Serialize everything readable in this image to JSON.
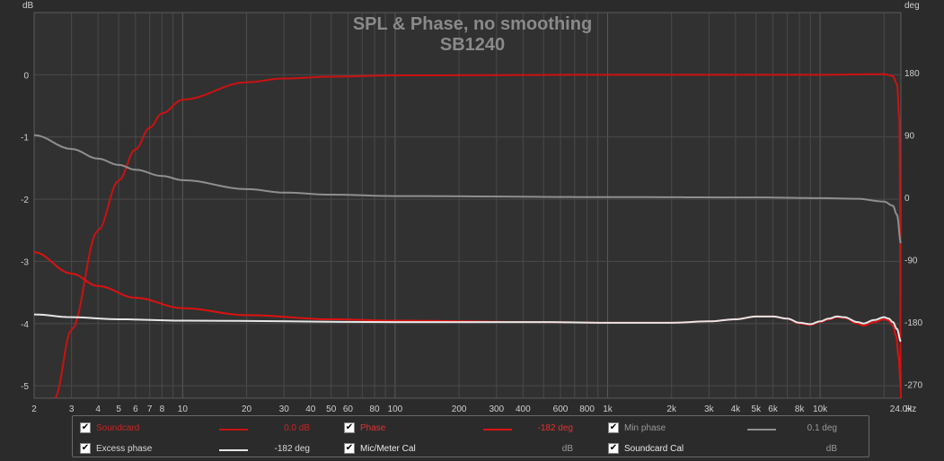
{
  "chart_data": {
    "type": "line",
    "title": "SPL & Phase, no smoothing",
    "subtitle": "SB1240",
    "left_axis": {
      "unit": "dB",
      "range": [
        -5.2,
        1.0
      ],
      "ticks": [
        "0",
        "-1",
        "-2",
        "-3",
        "-4",
        "-5"
      ],
      "tick_values": [
        0,
        -1,
        -2,
        -3,
        -4,
        -5
      ]
    },
    "right_axis": {
      "unit": "deg",
      "range": [
        -290,
        267
      ],
      "ticks": [
        "180",
        "90",
        "0",
        "-90",
        "-180",
        "-270"
      ],
      "tick_values": [
        180,
        90,
        0,
        -90,
        -180,
        -270
      ]
    },
    "x_axis": {
      "scale": "log",
      "unit": "Hz",
      "range": [
        2,
        24000
      ],
      "ticks": [
        "2",
        "3",
        "4",
        "5",
        "6",
        "7",
        "8",
        "10",
        "20",
        "30",
        "40",
        "50",
        "60",
        "80",
        "100",
        "200",
        "300",
        "400",
        "600",
        "800",
        "1k",
        "2k",
        "3k",
        "4k",
        "5k",
        "6k",
        "8k",
        "10k",
        "24.0k"
      ],
      "tick_values": [
        2,
        3,
        4,
        5,
        6,
        7,
        8,
        10,
        20,
        30,
        40,
        50,
        60,
        80,
        100,
        200,
        300,
        400,
        600,
        800,
        1000,
        2000,
        3000,
        4000,
        5000,
        6000,
        8000,
        10000,
        24000
      ]
    },
    "grid": true,
    "series": [
      {
        "name": "Soundcard",
        "axis": "left",
        "color": "#cc1111",
        "points": [
          [
            2.5,
            -5.2
          ],
          [
            3,
            -4.1
          ],
          [
            4,
            -2.5
          ],
          [
            5,
            -1.7
          ],
          [
            6,
            -1.2
          ],
          [
            7,
            -0.85
          ],
          [
            8,
            -0.62
          ],
          [
            10,
            -0.4
          ],
          [
            20,
            -0.12
          ],
          [
            30,
            -0.06
          ],
          [
            50,
            -0.03
          ],
          [
            100,
            -0.01
          ],
          [
            1000,
            0
          ],
          [
            10000,
            0
          ],
          [
            20000,
            0.01
          ],
          [
            22000,
            -0.02
          ],
          [
            23000,
            -0.15
          ],
          [
            23600,
            -0.7
          ],
          [
            24000,
            -5.2
          ]
        ]
      },
      {
        "name": "Phase",
        "axis": "right",
        "color": "#dd1111",
        "points": [
          [
            2,
            -79
          ],
          [
            3,
            -110
          ],
          [
            4,
            -128
          ],
          [
            6,
            -145
          ],
          [
            10,
            -160
          ],
          [
            20,
            -170
          ],
          [
            50,
            -176
          ],
          [
            100,
            -178
          ],
          [
            500,
            -180
          ],
          [
            1000,
            -181
          ],
          [
            2000,
            -181
          ],
          [
            3000,
            -179
          ],
          [
            4000,
            -176
          ],
          [
            5000,
            -172
          ],
          [
            6000,
            -172
          ],
          [
            7000,
            -175
          ],
          [
            8000,
            -182
          ],
          [
            9000,
            -184
          ],
          [
            10000,
            -180
          ],
          [
            11000,
            -176
          ],
          [
            12000,
            -173
          ],
          [
            13000,
            -174
          ],
          [
            15000,
            -182
          ],
          [
            16000,
            -185
          ],
          [
            18000,
            -180
          ],
          [
            20000,
            -176
          ],
          [
            21000,
            -178
          ],
          [
            22000,
            -185
          ],
          [
            22800,
            -200
          ],
          [
            23400,
            -230
          ],
          [
            24000,
            -275
          ]
        ]
      },
      {
        "name": "Min phase",
        "axis": "right",
        "color": "#8f8f8f",
        "points": [
          [
            2,
            90
          ],
          [
            3,
            70
          ],
          [
            4,
            56
          ],
          [
            5,
            47
          ],
          [
            6,
            40
          ],
          [
            8,
            31
          ],
          [
            10,
            25
          ],
          [
            20,
            12
          ],
          [
            30,
            7
          ],
          [
            50,
            4
          ],
          [
            100,
            2
          ],
          [
            1000,
            0.5
          ],
          [
            5000,
            0
          ],
          [
            10000,
            -1
          ],
          [
            15000,
            -2
          ],
          [
            20000,
            -6
          ],
          [
            22000,
            -12
          ],
          [
            23000,
            -25
          ],
          [
            24000,
            -66
          ]
        ]
      },
      {
        "name": "Excess phase",
        "axis": "right",
        "color": "#e6e6e6",
        "points": [
          [
            2,
            -169
          ],
          [
            3,
            -173
          ],
          [
            5,
            -176
          ],
          [
            10,
            -178
          ],
          [
            100,
            -180
          ],
          [
            500,
            -180
          ],
          [
            1000,
            -181
          ],
          [
            2000,
            -181
          ],
          [
            3000,
            -179
          ],
          [
            4000,
            -176
          ],
          [
            5000,
            -172
          ],
          [
            6000,
            -172
          ],
          [
            7000,
            -175
          ],
          [
            8000,
            -181
          ],
          [
            9000,
            -183
          ],
          [
            10000,
            -179
          ],
          [
            11000,
            -175
          ],
          [
            12000,
            -172
          ],
          [
            13000,
            -173
          ],
          [
            15000,
            -180
          ],
          [
            16000,
            -182
          ],
          [
            18000,
            -177
          ],
          [
            20000,
            -173
          ],
          [
            21000,
            -175
          ],
          [
            22000,
            -180
          ],
          [
            23000,
            -190
          ],
          [
            24000,
            -208
          ]
        ]
      }
    ]
  },
  "legend": [
    {
      "label": "Soundcard",
      "value": "0.0 dB",
      "color": "#cc1111",
      "label_color": "#cc2222",
      "value_color": "#cc2222",
      "swatch": true
    },
    {
      "label": "Phase",
      "value": "-182 deg",
      "color": "#dd1111",
      "label_color": "#e63030",
      "value_color": "#e63030",
      "swatch": true
    },
    {
      "label": "Min phase",
      "value": "0.1 deg",
      "color": "#8f8f8f",
      "label_color": "#9a9a9a",
      "value_color": "#9a9a9a",
      "swatch": true
    },
    {
      "label": "Excess phase",
      "value": "-182 deg",
      "color": "#e6e6e6",
      "label_color": "#d8d8d8",
      "value_color": "#d8d8d8",
      "swatch": true
    },
    {
      "label": "Mic/Meter Cal",
      "value": "dB",
      "color": "",
      "label_color": "#e8e8e8",
      "value_color": "#9a9a9a",
      "swatch": false
    },
    {
      "label": "Soundcard Cal",
      "value": "dB",
      "color": "",
      "label_color": "#e8e8e8",
      "value_color": "#9a9a9a",
      "swatch": false
    }
  ],
  "colors": {
    "background": "#2b2b2b",
    "plot_background": "#313131",
    "grid": "#4a4a4a",
    "grid_major": "#5a5a5a",
    "title": "#8a8a8a",
    "axis_text": "#cfcfcf"
  }
}
